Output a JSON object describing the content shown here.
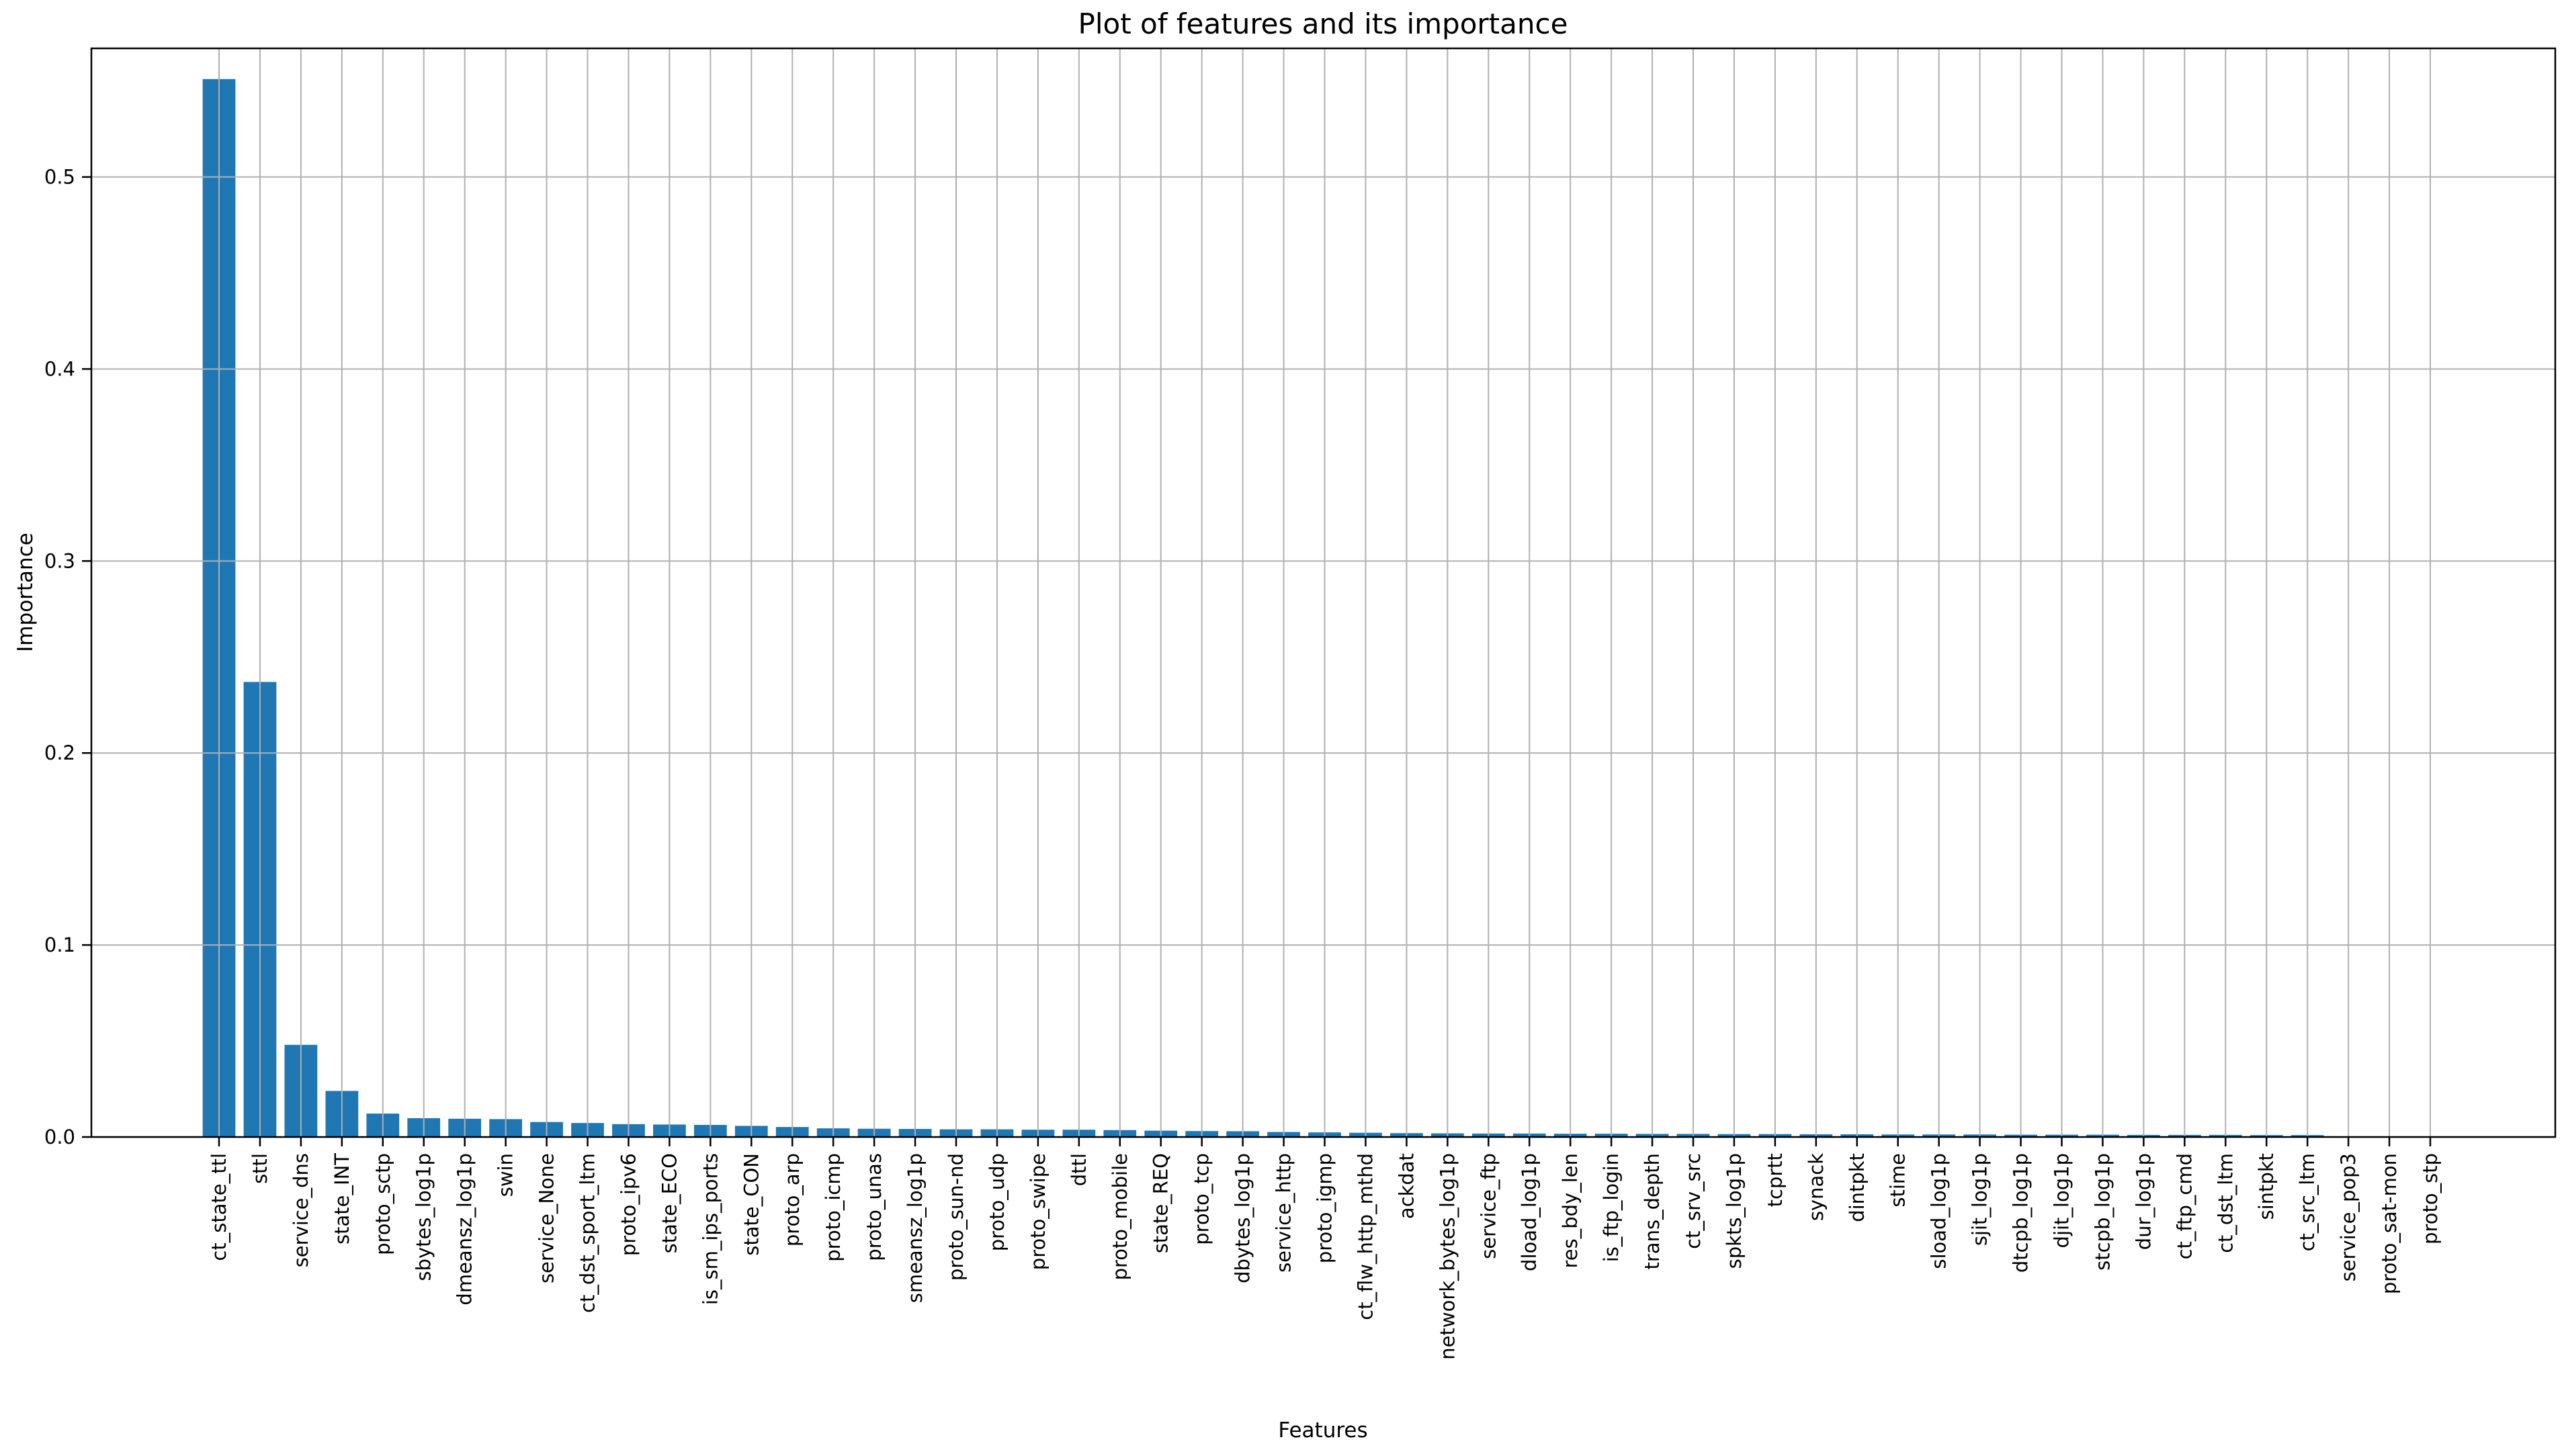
{
  "figure": {
    "title": "Plot of features and its importance",
    "xlabel": "Features",
    "ylabel": "Importance"
  },
  "chart_data": {
    "type": "bar",
    "title": "Plot of features and its importance",
    "xlabel": "Features",
    "ylabel": "Importance",
    "legend": null,
    "grid": true,
    "bar_color": "#1f77b4",
    "grid_color": "#b0b0b0",
    "spine_color": "#000000",
    "background_color": "#ffffff",
    "ylim": [
      0,
      0.567
    ],
    "yticks": [
      0.0,
      0.1,
      0.2,
      0.3,
      0.4,
      0.5
    ],
    "ytick_labels": [
      "0.0",
      "0.1",
      "0.2",
      "0.3",
      "0.4",
      "0.5"
    ],
    "categories": [
      "ct_state_ttl",
      "sttl",
      "service_dns",
      "state_INT",
      "proto_sctp",
      "sbytes_log1p",
      "dmeansz_log1p",
      "swin",
      "service_None",
      "ct_dst_sport_ltm",
      "proto_ipv6",
      "state_ECO",
      "is_sm_ips_ports",
      "state_CON",
      "proto_arp",
      "proto_icmp",
      "proto_unas",
      "smeansz_log1p",
      "proto_sun-nd",
      "proto_udp",
      "proto_swipe",
      "dttl",
      "proto_mobile",
      "state_REQ",
      "proto_tcp",
      "dbytes_log1p",
      "service_http",
      "proto_igmp",
      "ct_flw_http_mthd",
      "ackdat",
      "network_bytes_log1p",
      "service_ftp",
      "dload_log1p",
      "res_bdy_len",
      "is_ftp_login",
      "trans_depth",
      "ct_srv_src",
      "spkts_log1p",
      "tcprtt",
      "synack",
      "dintpkt",
      "stime",
      "sload_log1p",
      "sjit_log1p",
      "dtcpb_log1p",
      "djit_log1p",
      "stcpb_log1p",
      "dur_log1p",
      "ct_ftp_cmd",
      "ct_dst_ltm",
      "sintpkt",
      "ct_src_ltm",
      "service_pop3",
      "proto_sat-mon",
      "proto_stp"
    ],
    "values": [
      0.551,
      0.237,
      0.048,
      0.024,
      0.0122,
      0.0098,
      0.0095,
      0.0093,
      0.0078,
      0.0073,
      0.0067,
      0.0065,
      0.0063,
      0.0058,
      0.0052,
      0.0045,
      0.0043,
      0.0042,
      0.004,
      0.004,
      0.0038,
      0.0038,
      0.0036,
      0.0033,
      0.0031,
      0.003,
      0.0026,
      0.0024,
      0.0022,
      0.002,
      0.0019,
      0.0018,
      0.0018,
      0.0017,
      0.0017,
      0.0016,
      0.0016,
      0.0015,
      0.0015,
      0.0014,
      0.0014,
      0.0013,
      0.0013,
      0.0013,
      0.0012,
      0.0012,
      0.0012,
      0.0011,
      0.0011,
      0.0011,
      0.001,
      0.001,
      0.0001,
      5e-05,
      3e-05
    ]
  }
}
